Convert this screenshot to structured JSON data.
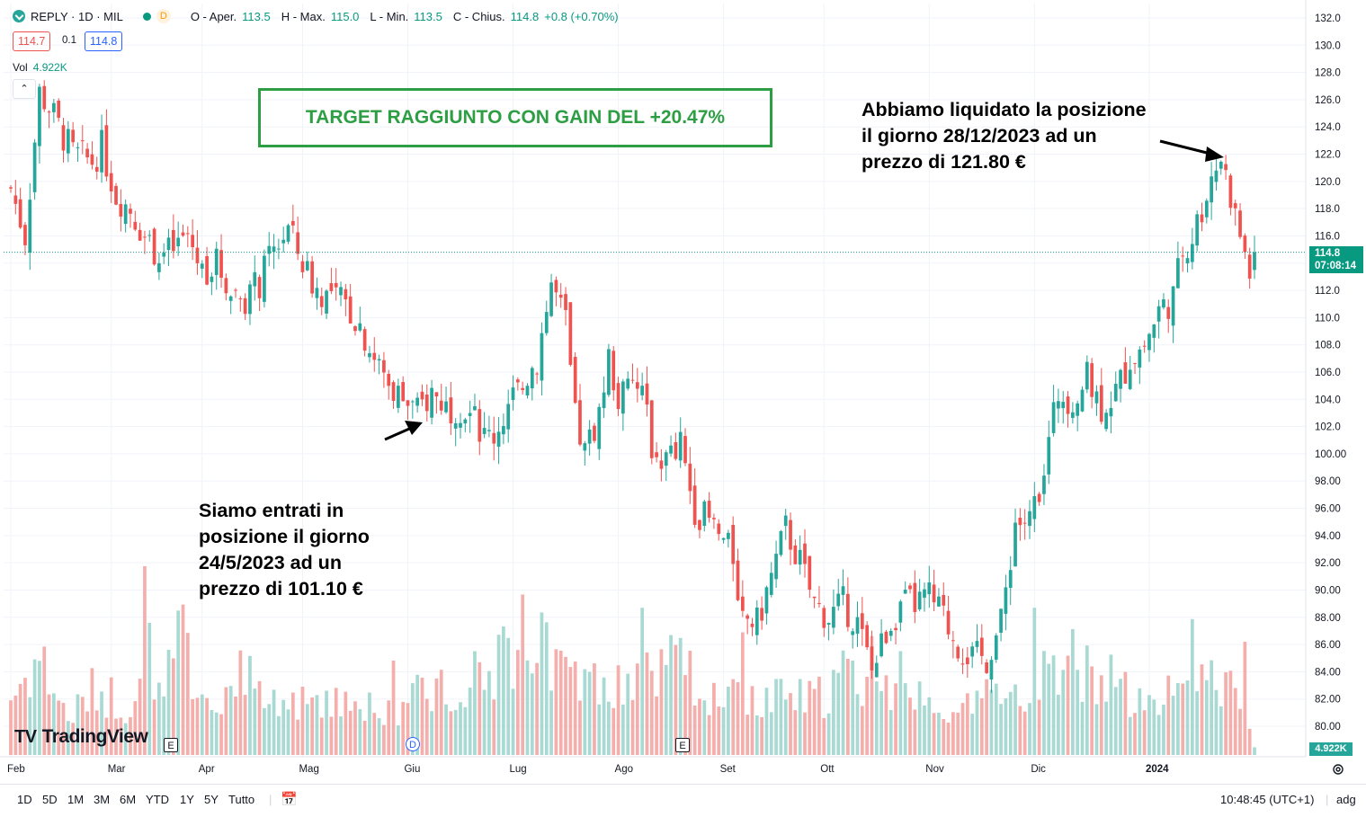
{
  "header": {
    "symbol": "REPLY · 1D · MIL",
    "badge": "D",
    "open_label": "O - Aper.",
    "open_value": "113.5",
    "high_label": "H - Max.",
    "high_value": "115.0",
    "low_label": "L - Min.",
    "low_value": "113.5",
    "close_label": "C - Chius.",
    "close_value": "114.8",
    "change_value": "+0.8 (+0.70%)",
    "bid": "114.7",
    "spread": "0.1",
    "ask": "114.8",
    "vol_label": "Vol",
    "vol_value": "4.922K"
  },
  "annotations": {
    "target": "TARGET RAGGIUNTO CON GAIN DEL +20.47%",
    "entry": [
      "Siamo entrati in",
      "posizione il giorno",
      "24/5/2023 ad un",
      "prezzo di 101.10 €"
    ],
    "exit": [
      "Abbiamo liquidato la posizione",
      "il giorno 28/12/2023 ad un",
      "prezzo di 121.80 €"
    ]
  },
  "price_tag": {
    "price": "114.8",
    "countdown": "07:08:14"
  },
  "volume_tag": "4.922K",
  "events": [
    "E",
    "D",
    "E"
  ],
  "brand": "TradingView",
  "toolbar": {
    "ranges": [
      "1D",
      "5D",
      "1M",
      "3M",
      "6M",
      "YTD",
      "1Y",
      "5Y",
      "Tutto"
    ],
    "time": "10:48:45 (UTC+1)",
    "adj": "adg"
  },
  "colors": {
    "up": "#26a69a",
    "down": "#ef5350",
    "vol_up": "#a8d9d3",
    "vol_down": "#f4aeab",
    "annotation_green": "#2e9e44"
  },
  "chart_data": {
    "type": "candlestick",
    "y_ticks": [
      "132.0",
      "130.0",
      "128.0",
      "126.0",
      "124.0",
      "122.0",
      "120.0",
      "118.0",
      "116.0",
      "114.0",
      "112.0",
      "110.0",
      "108.0",
      "106.0",
      "104.0",
      "102.0",
      "100.00",
      "98.00",
      "96.00",
      "94.00",
      "92.00",
      "90.00",
      "88.00",
      "86.00",
      "84.00",
      "82.00",
      "80.00"
    ],
    "x_ticks": [
      "Feb",
      "Mar",
      "Apr",
      "Mag",
      "Giu",
      "Lug",
      "Ago",
      "Set",
      "Ott",
      "Nov",
      "Dic",
      "2024"
    ],
    "ylim": [
      79.0,
      132.8
    ],
    "last_price": 114.8,
    "entry": {
      "date": "24/5/2023",
      "price": 101.1
    },
    "exit": {
      "date": "28/12/2023",
      "price": 121.8
    },
    "close_path": [
      [
        0,
        119.5
      ],
      [
        3,
        116
      ],
      [
        6,
        126.5
      ],
      [
        8,
        125.5
      ],
      [
        10,
        124
      ],
      [
        13,
        122
      ],
      [
        17,
        121.5
      ],
      [
        19,
        122.5
      ],
      [
        22,
        119
      ],
      [
        25,
        118
      ],
      [
        28,
        116
      ],
      [
        31,
        114.5
      ],
      [
        34,
        115
      ],
      [
        37,
        116
      ],
      [
        40,
        113.5
      ],
      [
        43,
        114
      ],
      [
        46,
        112
      ],
      [
        49,
        111.5
      ],
      [
        52,
        112.5
      ],
      [
        55,
        115
      ],
      [
        58,
        116.5
      ],
      [
        61,
        114
      ],
      [
        64,
        112
      ],
      [
        67,
        111.5
      ],
      [
        70,
        111
      ],
      [
        73,
        109.5
      ],
      [
        76,
        107
      ],
      [
        79,
        105
      ],
      [
        82,
        104
      ],
      [
        85,
        103
      ],
      [
        88,
        104.5
      ],
      [
        91,
        103.5
      ],
      [
        94,
        103.5
      ],
      [
        97,
        102.5
      ],
      [
        99,
        101.2
      ],
      [
        101,
        101.4
      ],
      [
        104,
        103.5
      ],
      [
        107,
        105
      ],
      [
        110,
        107
      ],
      [
        113,
        112.5
      ],
      [
        116,
        109.5
      ],
      [
        118,
        102.5
      ],
      [
        120,
        100
      ],
      [
        123,
        103
      ],
      [
        125,
        107
      ],
      [
        127,
        104
      ],
      [
        130,
        105
      ],
      [
        132,
        104.5
      ],
      [
        134,
        100.5
      ],
      [
        137,
        99.5
      ],
      [
        140,
        100.5
      ],
      [
        143,
        96
      ],
      [
        146,
        95
      ],
      [
        149,
        93.5
      ],
      [
        151,
        92.5
      ],
      [
        153,
        88
      ],
      [
        156,
        87.5
      ],
      [
        159,
        91
      ],
      [
        162,
        94.5
      ],
      [
        165,
        92
      ],
      [
        168,
        89
      ],
      [
        171,
        88
      ],
      [
        174,
        89
      ],
      [
        177,
        87.5
      ],
      [
        180,
        84
      ],
      [
        183,
        87
      ],
      [
        186,
        89
      ],
      [
        189,
        89
      ],
      [
        192,
        89.5
      ],
      [
        195,
        88
      ],
      [
        198,
        86
      ],
      [
        201,
        85
      ],
      [
        204,
        85
      ],
      [
        207,
        87.5
      ],
      [
        210,
        95
      ],
      [
        213,
        95
      ],
      [
        216,
        99
      ],
      [
        219,
        104.5
      ],
      [
        222,
        104
      ],
      [
        225,
        105.5
      ],
      [
        228,
        103.5
      ],
      [
        231,
        104.5
      ],
      [
        234,
        107
      ],
      [
        237,
        108
      ],
      [
        240,
        110.5
      ],
      [
        243,
        111.5
      ],
      [
        245,
        115
      ],
      [
        247,
        116
      ],
      [
        249,
        118
      ],
      [
        251,
        120.5
      ],
      [
        253,
        121.8
      ],
      [
        255,
        119
      ],
      [
        257,
        116
      ],
      [
        259,
        113.5
      ],
      [
        260,
        114.8
      ]
    ],
    "volume_levels": [
      [
        0,
        0.32
      ],
      [
        6,
        0.55
      ],
      [
        12,
        0.2
      ],
      [
        18,
        0.38
      ],
      [
        24,
        0.28
      ],
      [
        30,
        0.42
      ],
      [
        36,
        0.6
      ],
      [
        42,
        0.3
      ],
      [
        48,
        0.45
      ],
      [
        54,
        0.35
      ],
      [
        60,
        0.25
      ],
      [
        66,
        0.38
      ],
      [
        72,
        0.3
      ],
      [
        78,
        0.25
      ],
      [
        84,
        0.32
      ],
      [
        90,
        0.4
      ],
      [
        96,
        0.45
      ],
      [
        102,
        0.55
      ],
      [
        108,
        0.65
      ],
      [
        114,
        0.5
      ],
      [
        120,
        0.38
      ],
      [
        126,
        0.45
      ],
      [
        132,
        0.4
      ],
      [
        138,
        0.52
      ],
      [
        144,
        0.38
      ],
      [
        150,
        0.32
      ],
      [
        156,
        0.28
      ],
      [
        162,
        0.32
      ],
      [
        168,
        0.3
      ],
      [
        174,
        0.45
      ],
      [
        180,
        0.4
      ],
      [
        186,
        0.3
      ],
      [
        192,
        0.35
      ],
      [
        198,
        0.28
      ],
      [
        204,
        0.32
      ],
      [
        210,
        0.32
      ],
      [
        216,
        0.48
      ],
      [
        222,
        0.52
      ],
      [
        228,
        0.42
      ],
      [
        234,
        0.35
      ],
      [
        240,
        0.25
      ],
      [
        246,
        0.52
      ],
      [
        252,
        0.4
      ],
      [
        258,
        0.3
      ],
      [
        260,
        0.04
      ]
    ],
    "volume_spikes": [
      [
        28,
        1.0
      ],
      [
        29,
        0.7
      ],
      [
        80,
        0.5
      ],
      [
        97,
        0.55
      ],
      [
        104,
        0.62
      ],
      [
        107,
        0.85
      ],
      [
        121,
        0.44
      ],
      [
        132,
        0.78
      ],
      [
        140,
        0.62
      ],
      [
        153,
        0.65
      ],
      [
        180,
        0.63
      ],
      [
        186,
        0.55
      ],
      [
        214,
        0.78
      ],
      [
        225,
        0.58
      ],
      [
        247,
        0.72
      ],
      [
        258,
        0.6
      ]
    ],
    "total_bars": 261
  }
}
